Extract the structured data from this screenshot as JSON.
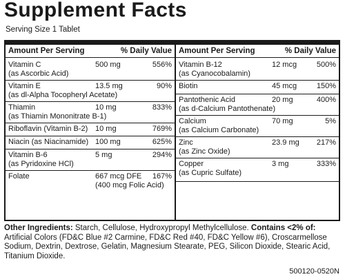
{
  "title": "Supplement Facts",
  "serving_size": "Serving Size 1 Tablet",
  "headers": {
    "amount": "Amount Per Serving",
    "dv": "% Daily Value"
  },
  "left_rows": [
    {
      "name": "Vitamin C",
      "source": "(as Ascorbic Acid)",
      "amount": "500 mg",
      "dv": "556%"
    },
    {
      "name": "Vitamin E",
      "source": "(as dl-Alpha Tocopheryl Acetate)",
      "amount": "13.5 mg",
      "dv": "90%"
    },
    {
      "name": "Thiamin",
      "source": "(as Thiamin Mononitrate B-1)",
      "amount": "10 mg",
      "dv": "833%"
    },
    {
      "name": "Riboflavin (Vitamin B-2)",
      "amount": "10 mg",
      "dv": "769%"
    },
    {
      "name": "Niacin (as Niacinamide)",
      "amount": "100 mg",
      "dv": "625%"
    },
    {
      "name": "Vitamin B-6",
      "source": "(as Pyridoxine HCl)",
      "amount": "5 mg",
      "dv": "294%"
    },
    {
      "name": "Folate",
      "amount": "667 mcg DFE",
      "amount2": "(400 mcg Folic Acid)",
      "dv": "167%"
    }
  ],
  "right_rows": [
    {
      "name": "Vitamin B-12",
      "source": "(as Cyanocobalamin)",
      "amount": "12 mcg",
      "dv": "500%"
    },
    {
      "name": "Biotin",
      "amount": "45 mcg",
      "dv": "150%"
    },
    {
      "name": "Pantothenic Acid",
      "source": "(as d-Calcium Pantothenate)",
      "amount": "20 mg",
      "dv": "400%"
    },
    {
      "name": "Calcium",
      "source": "(as Calcium Carbonate)",
      "amount": "70 mg",
      "dv": "5%"
    },
    {
      "name": "Zinc",
      "source": "(as Zinc Oxide)",
      "amount": "23.9 mg",
      "dv": "217%"
    },
    {
      "name": "Copper",
      "source": "(as Cupric Sulfate)",
      "amount": "3 mg",
      "dv": "333%"
    }
  ],
  "ingredients": {
    "label": "Other Ingredients:",
    "text1": " Starch, Cellulose, Hydroxypropyl Methylcellulose. ",
    "contains": "Contains <2% of:",
    "text2": " Artificial Colors (FD&C Blue #2 Carmine, FD&C Red #40, FD&C Yellow #6), Croscarmellose Sodium, Dextrin, Dextrose, Gelatin, Magnesium Stearate, PEG, Silicon Dioxide, Stearic Acid, Titanium Dioxide."
  },
  "code": "500120-0520N"
}
